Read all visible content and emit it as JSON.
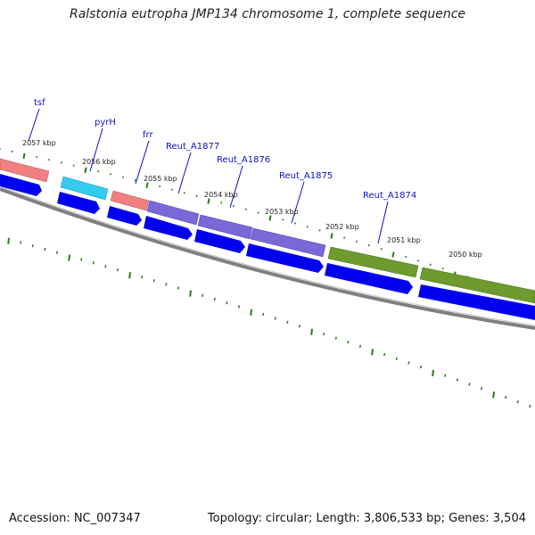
{
  "title": "Ralstonia eutropha JMP134 chromosome 1, complete sequence",
  "accession": "Accession: NC_007347",
  "summary": "Topology: circular; Length: 3,806,533 bp; Genes: 3,504",
  "colors": {
    "gene_label": "#1010c0",
    "cds_arrow": "#0000ee",
    "backbone": "#808080",
    "tick": "#2a7a18",
    "rna_tsf": "#f08080",
    "rna_pyrH": "#33ccee",
    "rna_frr": "#f08080",
    "cog_purple": "#7a68d8",
    "cog_olive": "#6e9a2e"
  },
  "gene_labels": [
    {
      "id": "tsf",
      "text": "tsf"
    },
    {
      "id": "pyrH",
      "text": "pyrH"
    },
    {
      "id": "frr",
      "text": "frr"
    },
    {
      "id": "a1877",
      "text": "Reut_A1877"
    },
    {
      "id": "a1876",
      "text": "Reut_A1876"
    },
    {
      "id": "a1875",
      "text": "Reut_A1875"
    },
    {
      "id": "a1874",
      "text": "Reut_A1874"
    }
  ],
  "kbp_labels": [
    {
      "id": "k2057",
      "text": "2057 kbp"
    },
    {
      "id": "k2056",
      "text": "2056 kbp"
    },
    {
      "id": "k2055",
      "text": "2055 kbp"
    },
    {
      "id": "k2054",
      "text": "2054 kbp"
    },
    {
      "id": "k2053",
      "text": "2053 kbp"
    },
    {
      "id": "k2052",
      "text": "2052 kbp"
    },
    {
      "id": "k2051",
      "text": "2051 kbp"
    },
    {
      "id": "k2050",
      "text": "2050 kbp"
    }
  ]
}
